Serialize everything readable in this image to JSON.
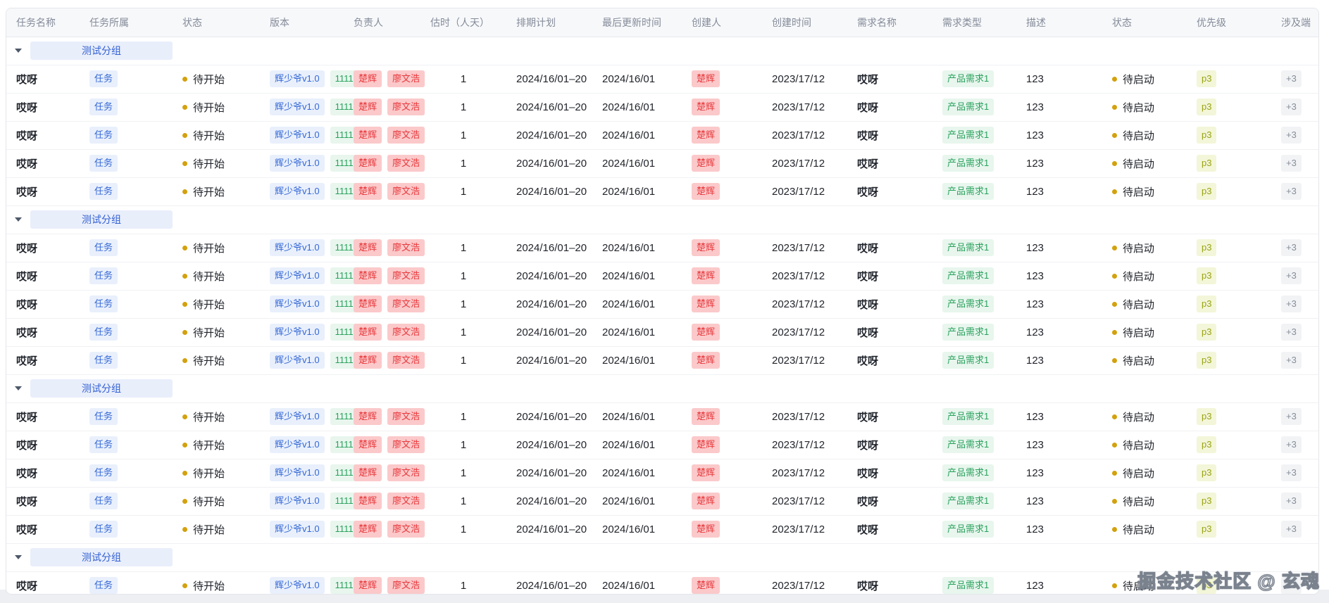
{
  "header": {
    "columns": [
      {
        "key": "task_name",
        "label": "任务名称"
      },
      {
        "key": "task_belong",
        "label": "任务所属"
      },
      {
        "key": "status",
        "label": "状态"
      },
      {
        "key": "version",
        "label": "版本"
      },
      {
        "key": "owner",
        "label": "负责人"
      },
      {
        "key": "estimate",
        "label": "估时（人天）"
      },
      {
        "key": "schedule",
        "label": "排期计划"
      },
      {
        "key": "last_updated",
        "label": "最后更新时间"
      },
      {
        "key": "creator",
        "label": "创建人"
      },
      {
        "key": "created_at",
        "label": "创建时间"
      },
      {
        "key": "requirement_name",
        "label": "需求名称"
      },
      {
        "key": "requirement_type",
        "label": "需求类型"
      },
      {
        "key": "description",
        "label": "描述"
      },
      {
        "key": "requirement_status",
        "label": "状态"
      },
      {
        "key": "priority",
        "label": "优先级"
      },
      {
        "key": "platform",
        "label": "涉及端"
      }
    ]
  },
  "groups": [
    {
      "label": "测试分组",
      "row_count": 5,
      "expanded": true
    },
    {
      "label": "测试分组",
      "row_count": 5,
      "expanded": true
    },
    {
      "label": "测试分组",
      "row_count": 5,
      "expanded": true
    },
    {
      "label": "测试分组",
      "row_count": 1,
      "expanded": true
    }
  ],
  "row_template": {
    "task_name": "哎呀",
    "task_belong": {
      "text": "任务",
      "type": "blue"
    },
    "status": {
      "text": "待开始"
    },
    "version": [
      {
        "text": "辉少爷v1.0",
        "type": "blue"
      },
      {
        "text": "1111",
        "type": "green"
      }
    ],
    "owners": [
      {
        "text": "楚辉",
        "type": "red"
      },
      {
        "text": "廖文浩",
        "type": "red"
      }
    ],
    "estimate": "1",
    "schedule": "2024/16/01–20",
    "last_updated": "2024/16/01",
    "creator": {
      "text": "楚辉",
      "type": "red"
    },
    "created_at": "2023/17/12",
    "requirement_name": "哎呀",
    "requirement_type": {
      "text": "产品需求1",
      "type": "green"
    },
    "description": "123",
    "requirement_status": {
      "text": "待启动"
    },
    "priority": {
      "text": "p3",
      "type": "lime"
    },
    "platform": {
      "text": "+3",
      "type": "gray"
    }
  },
  "watermark": {
    "text": "掘金技术社区 @ 玄魂"
  },
  "colors": {
    "header_bg": "#f7f8fa",
    "header_text": "#848b99",
    "status_dot": "#d3a10e",
    "group_pill_bg": "#e9eefb",
    "group_pill_text": "#3361d2",
    "tag_blue_bg": "#e9f0fc",
    "tag_blue_text": "#3467d6",
    "tag_green_bg": "#e8f6ee",
    "tag_green_text": "#29a15c",
    "tag_red_bg": "#fbc9ca",
    "tag_red_text": "#e8393d",
    "tag_lime_bg": "#f3f6d8",
    "tag_lime_text": "#99a317",
    "tag_gray_bg": "#f2f3f5",
    "tag_gray_text": "#868d99"
  }
}
